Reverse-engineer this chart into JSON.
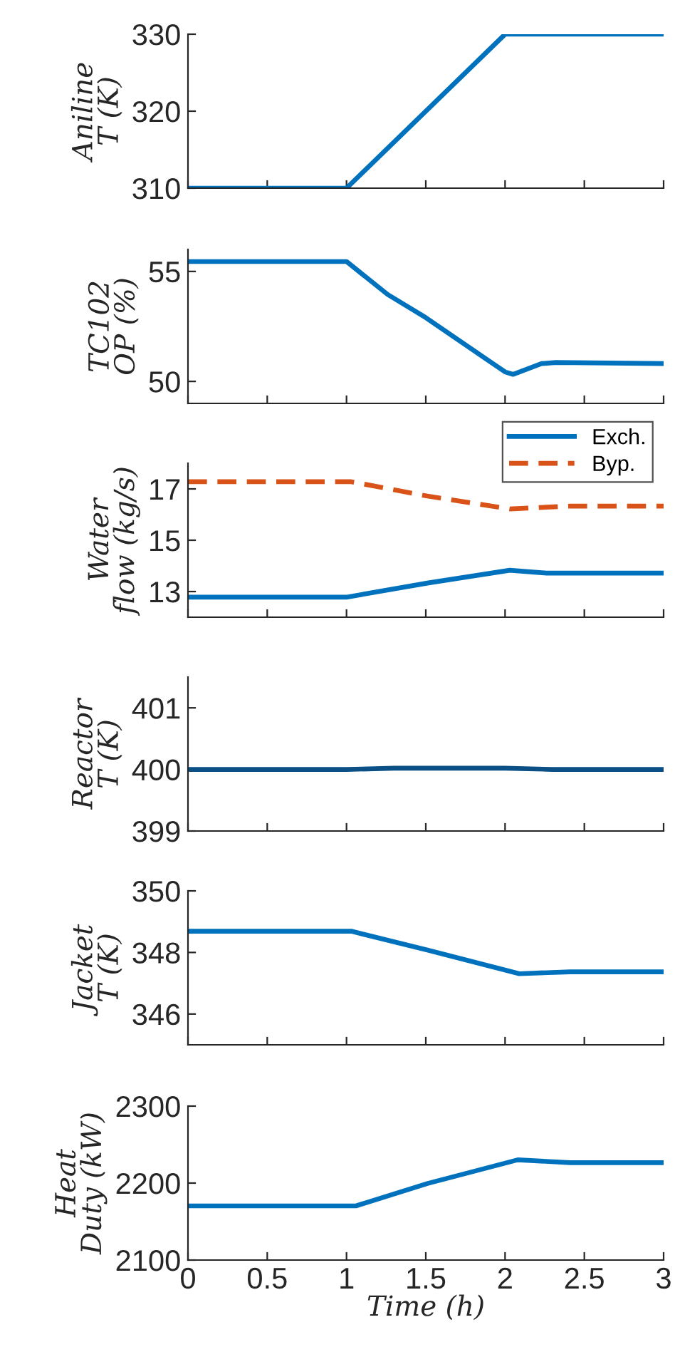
{
  "chart_data": [
    {
      "type": "line",
      "ylabel": "Aniline\nT (K)",
      "xlim": [
        0,
        3
      ],
      "xticks": [
        0,
        0.5,
        1,
        1.5,
        2,
        2.5,
        3
      ],
      "ylim": [
        310,
        330
      ],
      "yticks": [
        310,
        320,
        330
      ],
      "tick_labels": "y",
      "grid": false,
      "legend": false,
      "series": [
        {
          "color": "#0072bd",
          "x": [
            0,
            1,
            2,
            3
          ],
          "values": [
            310,
            310,
            330,
            330
          ]
        }
      ]
    },
    {
      "type": "line",
      "ylabel": "TC102\nOP (%)",
      "xlim": [
        0,
        3
      ],
      "xticks": [
        0,
        0.5,
        1,
        1.5,
        2,
        2.5,
        3
      ],
      "ylim": [
        49,
        56
      ],
      "yticks": [
        50,
        55
      ],
      "tick_labels": "y",
      "grid": false,
      "legend": false,
      "series": [
        {
          "color": "#0072bd",
          "x": [
            0,
            1.0,
            1.26,
            1.5,
            2.0,
            2.05,
            2.23,
            2.32,
            3
          ],
          "values": [
            55.45,
            55.45,
            53.95,
            52.9,
            50.43,
            50.32,
            50.81,
            50.86,
            50.81
          ]
        }
      ]
    },
    {
      "type": "line",
      "ylabel": "Water\nflow (kg/s)",
      "xlim": [
        0,
        3
      ],
      "xticks": [
        0,
        0.5,
        1,
        1.5,
        2,
        2.5,
        3
      ],
      "ylim": [
        12,
        18
      ],
      "yticks": [
        13,
        15,
        17
      ],
      "tick_labels": "y",
      "grid": false,
      "legend": "top right",
      "series": [
        {
          "name": "Exch.",
          "color": "#0072bd",
          "line_style": "solid",
          "x": [
            0,
            1.0,
            1.51,
            2.03,
            2.26,
            3
          ],
          "values": [
            12.78,
            12.78,
            13.33,
            13.83,
            13.72,
            13.72
          ]
        },
        {
          "name": "Byp.",
          "color": "#d95319",
          "line_style": "dashed",
          "x": [
            0,
            1.03,
            1.51,
            2.03,
            2.41,
            3
          ],
          "values": [
            17.28,
            17.28,
            16.72,
            16.22,
            16.33,
            16.33
          ]
        }
      ]
    },
    {
      "type": "line",
      "ylabel": "Reactor\nT (K)",
      "xlim": [
        0,
        3
      ],
      "xticks": [
        0,
        0.5,
        1,
        1.5,
        2,
        2.5,
        3
      ],
      "ylim": [
        399,
        401.5
      ],
      "yticks": [
        399,
        400,
        401
      ],
      "tick_labels": "y",
      "grid": false,
      "legend": false,
      "series": [
        {
          "color": "#0a4f86",
          "x": [
            0,
            1.0,
            1.3,
            2.0,
            2.3,
            3
          ],
          "values": [
            400,
            400,
            400.02,
            400.02,
            400,
            400
          ]
        }
      ]
    },
    {
      "type": "line",
      "ylabel": "Jacket\nT (K)",
      "xlim": [
        0,
        3
      ],
      "xticks": [
        0,
        0.5,
        1,
        1.5,
        2,
        2.5,
        3
      ],
      "ylim": [
        345,
        350
      ],
      "yticks": [
        346,
        348,
        350
      ],
      "tick_labels": "y",
      "grid": false,
      "legend": false,
      "series": [
        {
          "color": "#0072bd",
          "x": [
            0,
            1.03,
            1.51,
            2.09,
            2.41,
            3
          ],
          "values": [
            348.69,
            348.69,
            348.08,
            347.31,
            347.37,
            347.37
          ]
        }
      ]
    },
    {
      "type": "line",
      "ylabel": "Heat\nDuty (kW)",
      "xlabel": "Time (h)",
      "xlim": [
        0,
        3
      ],
      "xticks": [
        0,
        0.5,
        1,
        1.5,
        2,
        2.5,
        3
      ],
      "ylim": [
        2100,
        2300
      ],
      "yticks": [
        2100,
        2200,
        2300
      ],
      "grid": false,
      "legend": false,
      "series": [
        {
          "color": "#0072bd",
          "x": [
            0,
            1.06,
            1.51,
            2.08,
            2.41,
            3
          ],
          "values": [
            2170.4,
            2170.4,
            2199.4,
            2230.2,
            2226.5,
            2226.5
          ]
        }
      ]
    }
  ]
}
